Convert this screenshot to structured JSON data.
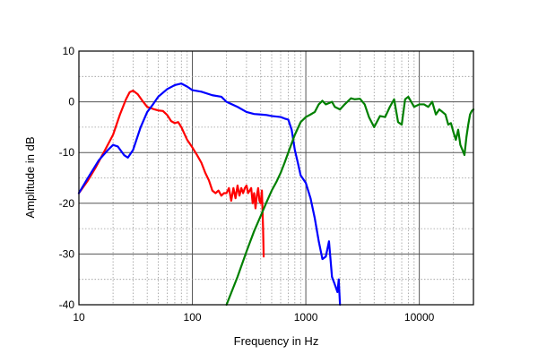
{
  "chart_data": {
    "type": "line",
    "title": "",
    "xlabel": "Frequency in Hz",
    "ylabel": "Amplitude in dB",
    "xscale": "log",
    "xlim": [
      10,
      30000
    ],
    "ylim": [
      -40,
      10
    ],
    "grid": true,
    "legend": "none",
    "x_tick_labels": [
      {
        "value": 10,
        "label": "10"
      },
      {
        "value": 100,
        "label": "100"
      },
      {
        "value": 1000,
        "label": "1000"
      },
      {
        "value": 10000,
        "label": "10000"
      }
    ],
    "y_tick_labels": [
      {
        "value": 10,
        "label": "10"
      },
      {
        "value": 0,
        "label": "0"
      },
      {
        "value": -10,
        "label": "-10"
      },
      {
        "value": -20,
        "label": "-20"
      },
      {
        "value": -30,
        "label": "-30"
      },
      {
        "value": -40,
        "label": "-40"
      }
    ],
    "series": [
      {
        "color": "#ff0000",
        "x": [
          10,
          12,
          14,
          17,
          20,
          23,
          26,
          28,
          30,
          33,
          36,
          40,
          45,
          50,
          55,
          60,
          65,
          70,
          75,
          80,
          90,
          100,
          110,
          120,
          130,
          140,
          150,
          160,
          170,
          180,
          190,
          200,
          210,
          220,
          230,
          240,
          250,
          260,
          270,
          280,
          290,
          300,
          310,
          320,
          330,
          340,
          350,
          360,
          370,
          380,
          390,
          400,
          410,
          420,
          425
        ],
        "y": [
          -18,
          -15.5,
          -13,
          -9.5,
          -6.5,
          -2.5,
          0.5,
          1.9,
          2.2,
          1.5,
          0.3,
          -1,
          -1.4,
          -1.7,
          -1.8,
          -2.6,
          -3.8,
          -4.2,
          -4,
          -5,
          -7.5,
          -9,
          -10.5,
          -12,
          -14,
          -15.5,
          -17.5,
          -18,
          -17.5,
          -18.5,
          -18,
          -18,
          -17,
          -19.5,
          -17,
          -19,
          -16.5,
          -18.5,
          -17,
          -18,
          -17,
          -16.5,
          -18,
          -17.5,
          -17,
          -20,
          -18,
          -21,
          -18.5,
          -17,
          -19.5,
          -20,
          -17.5,
          -25,
          -30.5
        ]
      },
      {
        "color": "#0000ff",
        "x": [
          10,
          12,
          15,
          18,
          20,
          22,
          25,
          27,
          30,
          35,
          40,
          45,
          50,
          60,
          70,
          80,
          90,
          100,
          120,
          150,
          180,
          200,
          250,
          300,
          350,
          400,
          450,
          500,
          600,
          650,
          700,
          750,
          800,
          850,
          900,
          1000,
          1100,
          1200,
          1300,
          1400,
          1500,
          1600,
          1700,
          1800,
          1900,
          1950,
          2000
        ],
        "y": [
          -18,
          -15,
          -11.5,
          -9.5,
          -8.5,
          -8.8,
          -10.5,
          -11,
          -9.5,
          -5,
          -2,
          -0.5,
          1,
          2.5,
          3.3,
          3.6,
          3,
          2.3,
          2,
          1.3,
          1,
          0,
          -1,
          -2,
          -2.4,
          -2.5,
          -2.6,
          -2.8,
          -3,
          -3.3,
          -3.5,
          -5.5,
          -9.5,
          -12,
          -14.5,
          -16,
          -19,
          -23,
          -27.5,
          -31,
          -30.5,
          -27.5,
          -34.5,
          -36,
          -37.5,
          -35,
          -40
        ]
      },
      {
        "color": "#008000",
        "x": [
          200,
          250,
          300,
          350,
          400,
          450,
          500,
          550,
          600,
          650,
          700,
          800,
          900,
          1000,
          1100,
          1200,
          1300,
          1400,
          1500,
          1700,
          1800,
          2000,
          2200,
          2500,
          2700,
          3000,
          3300,
          3600,
          4000,
          4500,
          5000,
          5500,
          6000,
          6500,
          7000,
          7500,
          8000,
          9000,
          10000,
          11000,
          12000,
          13000,
          14000,
          15000,
          16000,
          17000,
          18000,
          19000,
          20000,
          21000,
          22000,
          23000,
          24000,
          25000,
          26000,
          27000,
          28000,
          29000,
          30000
        ],
        "y": [
          -40,
          -34.5,
          -29.5,
          -25.5,
          -22.5,
          -19.8,
          -17.5,
          -15.8,
          -14,
          -12,
          -10,
          -6.5,
          -4,
          -3,
          -2.5,
          -2,
          -0.5,
          0.2,
          -0.5,
          0,
          -1,
          -1.5,
          -0.5,
          0.7,
          0.5,
          0.6,
          -0.5,
          -3,
          -5,
          -2.8,
          -3,
          -1,
          0.5,
          -4,
          -4.5,
          0.5,
          1,
          -1,
          -0.5,
          -0.5,
          -1,
          0,
          -2.5,
          -1.5,
          -2,
          -2.5,
          -4.5,
          -4.2,
          -6,
          -7.5,
          -5.5,
          -8.5,
          -9.5,
          -10.5,
          -7,
          -4.5,
          -2.5,
          -1.8,
          -1.5
        ]
      }
    ]
  }
}
